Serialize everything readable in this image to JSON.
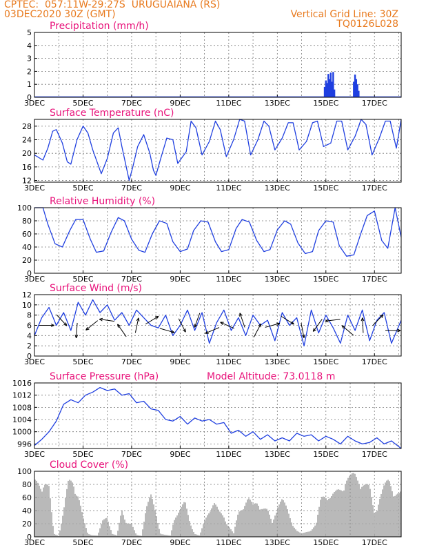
{
  "header": {
    "line1": "CPTEC:  057:11W-29:27S  URUGUAIANA (RS)",
    "line2": "03DEC2020 30Z (GMT)",
    "grid_note": "Vertical Grid Line: 30Z",
    "run_code": "TQ0126L028",
    "model_altitude": "Model Altitude: 73.0118 m"
  },
  "colors": {
    "header": "#e87a1e",
    "title": "#e8127a",
    "line": "#1f3fe0",
    "bars": "#a8a8a8",
    "grid": "#777777"
  },
  "x_ticks": [
    "3DEC",
    "5DEC",
    "7DEC",
    "9DEC",
    "11DEC",
    "13DEC",
    "15DEC",
    "17DEC"
  ],
  "chart_data": [
    {
      "type": "bar",
      "title": "Precipitation (mm/h)",
      "x_range_days": [
        3,
        18.1
      ],
      "ylim": [
        0,
        5
      ],
      "yticks": [
        "0",
        "1",
        "2",
        "3",
        "4",
        "5"
      ],
      "x": [
        14.95,
        15.0,
        15.05,
        15.1,
        15.15,
        15.2,
        15.25,
        15.3,
        15.35,
        16.15,
        16.2,
        16.25,
        16.3,
        16.35
      ],
      "values": [
        0.8,
        1.3,
        1.1,
        1.8,
        1.4,
        1.9,
        1.2,
        1.95,
        0.6,
        1.2,
        1.75,
        1.4,
        1.0,
        0.5
      ]
    },
    {
      "type": "line",
      "title": "Surface Temperature (nC)",
      "x_range_days": [
        3,
        18.1
      ],
      "ylim": [
        11.5,
        30
      ],
      "yticks": [
        "12",
        "16",
        "20",
        "24",
        "28"
      ],
      "x": [
        3.0,
        3.35,
        3.55,
        3.75,
        3.9,
        4.15,
        4.35,
        4.5,
        4.75,
        5.0,
        5.2,
        5.4,
        5.75,
        6.0,
        6.25,
        6.45,
        6.6,
        6.9,
        7.05,
        7.25,
        7.5,
        7.75,
        7.9,
        8.0,
        8.2,
        8.45,
        8.7,
        8.9,
        9.25,
        9.45,
        9.65,
        9.9,
        10.2,
        10.45,
        10.65,
        10.9,
        11.2,
        11.45,
        11.65,
        11.9,
        12.2,
        12.45,
        12.65,
        12.9,
        13.2,
        13.45,
        13.65,
        13.9,
        14.2,
        14.45,
        14.65,
        14.9,
        15.2,
        15.45,
        15.65,
        15.9,
        16.2,
        16.45,
        16.65,
        16.9,
        17.2,
        17.45,
        17.65,
        17.9,
        18.1
      ],
      "values": [
        19.5,
        18.0,
        21.5,
        26.5,
        27.0,
        23.0,
        17.5,
        16.8,
        24.0,
        28.0,
        26.0,
        21.0,
        14.0,
        18.5,
        26.0,
        27.5,
        22.0,
        12.0,
        16.0,
        22.0,
        25.5,
        20.0,
        15.0,
        13.5,
        18.5,
        24.5,
        24.0,
        17.0,
        20.5,
        29.5,
        27.5,
        19.5,
        23.5,
        29.5,
        27.0,
        19.0,
        24.0,
        30.0,
        29.5,
        19.5,
        24.0,
        29.5,
        28.0,
        21.0,
        24.5,
        29.0,
        29.0,
        21.0,
        23.5,
        29.0,
        29.5,
        22.0,
        23.0,
        29.5,
        29.5,
        21.0,
        25.0,
        30.0,
        28.5,
        19.5,
        24.5,
        29.5,
        29.5,
        21.5,
        30.0
      ]
    },
    {
      "type": "line",
      "title": "Relative Humidity (%)",
      "x_range_days": [
        3,
        18.1
      ],
      "ylim": [
        0,
        100
      ],
      "yticks": [
        "0",
        "20",
        "40",
        "60",
        "80",
        "100"
      ],
      "x": [
        3.0,
        3.35,
        3.55,
        3.85,
        4.15,
        4.45,
        4.7,
        5.0,
        5.3,
        5.55,
        5.85,
        6.15,
        6.45,
        6.7,
        7.0,
        7.3,
        7.55,
        7.85,
        8.15,
        8.45,
        8.7,
        9.0,
        9.3,
        9.55,
        9.85,
        10.15,
        10.45,
        10.7,
        11.0,
        11.3,
        11.55,
        11.85,
        12.15,
        12.45,
        12.7,
        13.0,
        13.3,
        13.55,
        13.85,
        14.15,
        14.45,
        14.7,
        15.0,
        15.3,
        15.55,
        15.85,
        16.15,
        16.45,
        16.7,
        17.0,
        17.3,
        17.55,
        17.85,
        18.1
      ],
      "values": [
        100,
        100,
        75,
        45,
        40,
        65,
        82,
        82,
        52,
        32,
        34,
        62,
        85,
        80,
        52,
        35,
        32,
        60,
        80,
        76,
        48,
        33,
        37,
        65,
        80,
        78,
        48,
        33,
        36,
        68,
        82,
        78,
        50,
        33,
        36,
        66,
        80,
        75,
        46,
        30,
        33,
        65,
        80,
        78,
        42,
        26,
        28,
        62,
        88,
        95,
        50,
        38,
        100,
        55
      ]
    },
    {
      "type": "line",
      "title": "Surface Wind (m/s)",
      "x_range_days": [
        3,
        18.1
      ],
      "ylim": [
        0,
        12
      ],
      "yticks": [
        "0",
        "2",
        "4",
        "6",
        "8",
        "10",
        "12"
      ],
      "x": [
        3.0,
        3.3,
        3.6,
        3.9,
        4.2,
        4.5,
        4.8,
        5.1,
        5.4,
        5.7,
        6.0,
        6.3,
        6.6,
        6.9,
        7.2,
        7.5,
        7.8,
        8.1,
        8.4,
        8.7,
        9.0,
        9.3,
        9.6,
        9.9,
        10.2,
        10.5,
        10.8,
        11.1,
        11.4,
        11.7,
        12.0,
        12.3,
        12.6,
        12.9,
        13.2,
        13.5,
        13.8,
        14.1,
        14.4,
        14.7,
        15.0,
        15.3,
        15.6,
        15.9,
        16.2,
        16.5,
        16.8,
        17.1,
        17.4,
        17.7,
        18.1
      ],
      "values": [
        4.0,
        7.5,
        9.5,
        6.0,
        8.5,
        5.0,
        10.5,
        8.0,
        11.0,
        8.5,
        10.0,
        7.0,
        8.5,
        6.0,
        9.0,
        7.5,
        6.0,
        5.5,
        8.0,
        4.0,
        6.0,
        9.0,
        5.0,
        8.5,
        2.5,
        6.5,
        9.0,
        5.0,
        7.5,
        4.0,
        8.0,
        6.0,
        7.0,
        3.0,
        8.5,
        6.0,
        7.5,
        2.0,
        9.0,
        4.5,
        8.0,
        5.5,
        2.5,
        8.0,
        5.0,
        9.0,
        3.0,
        7.0,
        8.5,
        2.5,
        7.0
      ]
    },
    {
      "type": "line",
      "title": "Surface Pressure (hPa)",
      "x_range_days": [
        3,
        18.1
      ],
      "ylim": [
        994.5,
        1016
      ],
      "yticks": [
        "996",
        "1000",
        "1004",
        "1008",
        "1012",
        "1016"
      ],
      "x": [
        3.0,
        3.3,
        3.6,
        3.9,
        4.2,
        4.5,
        4.8,
        5.1,
        5.4,
        5.7,
        6.0,
        6.3,
        6.6,
        6.9,
        7.2,
        7.5,
        7.8,
        8.1,
        8.4,
        8.7,
        9.0,
        9.3,
        9.6,
        9.9,
        10.2,
        10.5,
        10.8,
        11.1,
        11.4,
        11.7,
        12.0,
        12.3,
        12.6,
        12.9,
        13.2,
        13.5,
        13.8,
        14.1,
        14.4,
        14.7,
        15.0,
        15.3,
        15.6,
        15.9,
        16.2,
        16.5,
        16.8,
        17.1,
        17.4,
        17.7,
        18.1
      ],
      "values": [
        995.5,
        997.5,
        1000.0,
        1003.5,
        1009.0,
        1010.5,
        1009.5,
        1012.0,
        1013.0,
        1014.5,
        1013.5,
        1014.0,
        1012.0,
        1012.5,
        1009.5,
        1010.0,
        1007.5,
        1007.0,
        1004.0,
        1003.5,
        1005.0,
        1002.5,
        1004.5,
        1003.5,
        1004.0,
        1002.5,
        1003.0,
        999.5,
        1000.5,
        998.5,
        1000.0,
        997.5,
        999.0,
        997.0,
        998.0,
        997.0,
        999.5,
        998.5,
        999.0,
        997.0,
        998.5,
        997.5,
        996.0,
        998.5,
        997.0,
        996.0,
        996.5,
        998.0,
        996.0,
        997.0,
        994.5
      ]
    },
    {
      "type": "bar",
      "title": "Cloud Cover (%)",
      "x_range_days": [
        3,
        18.1
      ],
      "ylim": [
        0,
        100
      ],
      "yticks": [
        "0",
        "20",
        "40",
        "60",
        "80",
        "100"
      ],
      "envelope_x": [
        3.0,
        3.2,
        3.4,
        3.6,
        3.8,
        4.0,
        4.2,
        4.4,
        4.6,
        4.8,
        5.0,
        5.2,
        5.4,
        5.6,
        5.8,
        6.0,
        6.2,
        6.4,
        6.6,
        6.8,
        7.0,
        7.2,
        7.4,
        7.6,
        7.8,
        8.0,
        8.2,
        8.4,
        8.6,
        8.8,
        9.0,
        9.2,
        9.4,
        9.6,
        9.8,
        10.0,
        10.2,
        10.4,
        10.6,
        10.8,
        11.0,
        11.2,
        11.4,
        11.6,
        11.8,
        12.0,
        12.2,
        12.4,
        12.6,
        12.8,
        13.0,
        13.2,
        13.4,
        13.6,
        13.8,
        14.0,
        14.2,
        14.4,
        14.6,
        14.8,
        15.0,
        15.2,
        15.4,
        15.6,
        15.8,
        16.0,
        16.2,
        16.4,
        16.6,
        16.8,
        17.0,
        17.2,
        17.4,
        17.6,
        17.8,
        18.0
      ],
      "envelope_values": [
        88,
        90,
        92,
        78,
        5,
        2,
        42,
        88,
        95,
        70,
        30,
        5,
        3,
        2,
        25,
        35,
        5,
        2,
        45,
        25,
        20,
        3,
        2,
        48,
        65,
        40,
        5,
        3,
        2,
        38,
        45,
        55,
        25,
        5,
        2,
        25,
        48,
        55,
        40,
        35,
        18,
        5,
        40,
        55,
        62,
        50,
        60,
        48,
        42,
        22,
        55,
        60,
        45,
        25,
        10,
        5,
        8,
        12,
        20,
        62,
        75,
        65,
        70,
        80,
        97,
        95,
        100,
        98,
        85,
        78,
        40,
        65,
        80,
        92,
        80,
        70
      ]
    }
  ]
}
